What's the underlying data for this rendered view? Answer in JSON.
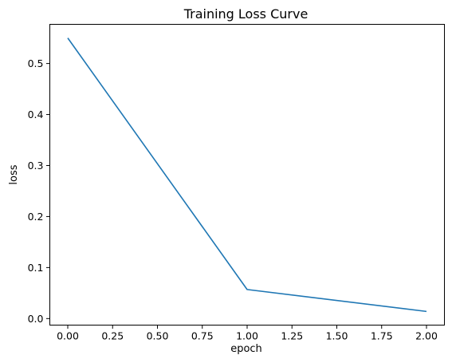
{
  "chart_data": {
    "type": "line",
    "title": "Training Loss Curve",
    "xlabel": "epoch",
    "ylabel": "loss",
    "x": [
      0,
      1,
      2
    ],
    "series": [
      {
        "values": [
          0.55,
          0.057,
          0.014
        ],
        "color": "#1f77b4"
      }
    ],
    "xlim": [
      -0.1,
      2.1
    ],
    "ylim": [
      -0.0128,
      0.5768
    ],
    "x_ticks": [
      0.0,
      0.25,
      0.5,
      0.75,
      1.0,
      1.25,
      1.5,
      1.75,
      2.0
    ],
    "x_tick_labels": [
      "0.00",
      "0.25",
      "0.50",
      "0.75",
      "1.00",
      "1.25",
      "1.50",
      "1.75",
      "2.00"
    ],
    "y_ticks": [
      0.0,
      0.1,
      0.2,
      0.3,
      0.4,
      0.5
    ],
    "y_tick_labels": [
      "0.0",
      "0.1",
      "0.2",
      "0.3",
      "0.4",
      "0.5"
    ],
    "grid": false,
    "legend": "none"
  }
}
